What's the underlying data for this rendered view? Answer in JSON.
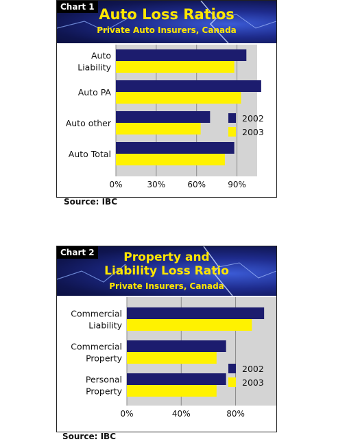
{
  "chart_data": [
    {
      "type": "bar",
      "chart_label": "Chart 1",
      "title": "Auto Loss Ratios",
      "subtitle": "Private Auto Insurers, Canada",
      "categories": [
        "Auto Liability",
        "Auto PA",
        "Auto other",
        "Auto Total"
      ],
      "category_lines": [
        [
          "Auto",
          "Liability"
        ],
        [
          "Auto PA"
        ],
        [
          "Auto other"
        ],
        [
          "Auto Total"
        ]
      ],
      "series": [
        {
          "name": "2002",
          "values": [
            97,
            108,
            70,
            88
          ]
        },
        {
          "name": "2003",
          "values": [
            88,
            93,
            63,
            81
          ]
        }
      ],
      "xlim": [
        0,
        105
      ],
      "xticks": [
        0,
        30,
        60,
        90
      ],
      "xtick_labels": [
        "0%",
        "30%",
        "60%",
        "90%"
      ],
      "legend": "right",
      "source": "Source: IBC"
    },
    {
      "type": "bar",
      "chart_label": "Chart 2",
      "title_lines": [
        "Property and",
        "Liability Loss Ratio"
      ],
      "subtitle": "Private Insurers, Canada",
      "categories": [
        "Commercial Liability",
        "Commercial Property",
        "Personal Property"
      ],
      "category_lines": [
        [
          "Commercial",
          "Liability"
        ],
        [
          "Commercial",
          "Property"
        ],
        [
          "Personal",
          "Property"
        ]
      ],
      "series": [
        {
          "name": "2002",
          "values": [
            101,
            73,
            73
          ]
        },
        {
          "name": "2003",
          "values": [
            92,
            66,
            66
          ]
        }
      ],
      "xlim": [
        0,
        110
      ],
      "xticks": [
        0,
        40,
        80
      ],
      "xtick_labels": [
        "0%",
        "40%",
        "80%"
      ],
      "legend": "right",
      "source": "Source: IBC"
    }
  ],
  "colors": {
    "series_2002": "#1c1c6e",
    "series_2003": "#fff200",
    "banner_text": "#ffe600",
    "plot_bg": "#d4d4d4"
  }
}
